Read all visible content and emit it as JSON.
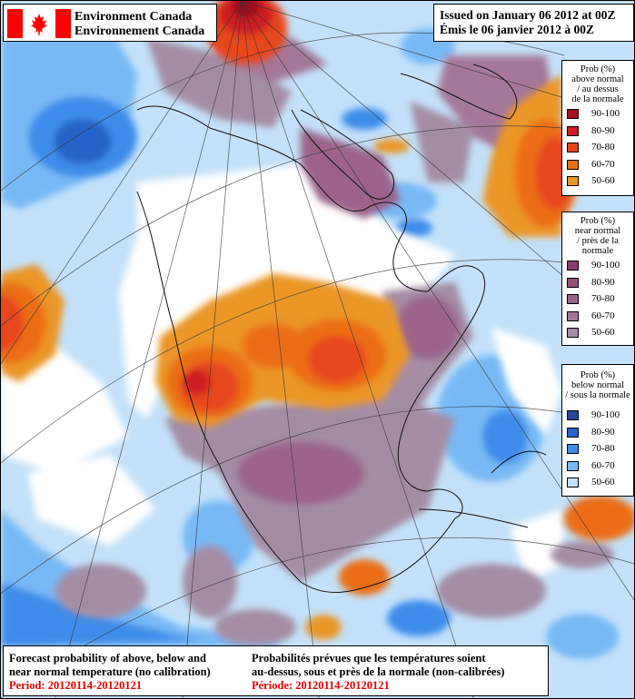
{
  "header": {
    "org_en": "Environment Canada",
    "org_fr": "Environnement Canada",
    "issued_en": "Issued on January 06 2012 at 00Z",
    "issued_fr": "Émis le 06 janvier 2012 à 00Z"
  },
  "legends": [
    {
      "title": [
        "Prob (%)",
        "above normal",
        "/ au dessus",
        "de la normale"
      ],
      "items": [
        {
          "label": "90-100",
          "color": "#a5101e"
        },
        {
          "label": "80-90",
          "color": "#cd1e23"
        },
        {
          "label": "70-80",
          "color": "#e6461e"
        },
        {
          "label": "60-70",
          "color": "#eb6e19"
        },
        {
          "label": "50-60",
          "color": "#eb9628"
        }
      ]
    },
    {
      "title": [
        "Prob (%)",
        "near normal",
        "/ près de la",
        "normale"
      ],
      "items": [
        {
          "label": "90-100",
          "color": "#8c3c6e"
        },
        {
          "label": "80-90",
          "color": "#965078"
        },
        {
          "label": "70-80",
          "color": "#9b648c"
        },
        {
          "label": "60-70",
          "color": "#a5789b"
        },
        {
          "label": "50-60",
          "color": "#a58ca5"
        }
      ]
    },
    {
      "title": [
        "Prob (%)",
        "below normal",
        "/ sous la normale"
      ],
      "items": [
        {
          "label": "90-100",
          "color": "#2846a0"
        },
        {
          "label": "80-90",
          "color": "#2864c8"
        },
        {
          "label": "70-80",
          "color": "#3c8ceb"
        },
        {
          "label": "60-70",
          "color": "#78b9f5"
        },
        {
          "label": "50-60",
          "color": "#c3e1fa"
        }
      ]
    }
  ],
  "footer": {
    "en_line1": "Forecast probability of above, below and",
    "en_line2": "near normal temperature (no calibration)",
    "en_period": "Period: 20120114-20120121",
    "fr_line1": "Probabilités prévues que les températures soient",
    "fr_line2": "au-dessus, sous et près de la normale (non-calibrées)",
    "fr_period": "Période: 20120114-20120121"
  },
  "colors": {
    "flag_red": "#ff0000",
    "period_text": "#e10000",
    "land_white": "#ffffff"
  }
}
